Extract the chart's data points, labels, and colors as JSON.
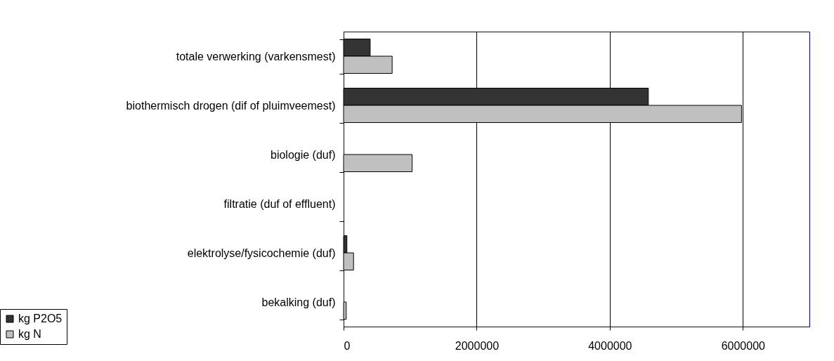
{
  "chart_data": {
    "type": "bar",
    "orientation": "horizontal",
    "categories": [
      "totale verwerking (varkensmest)",
      "biothermisch drogen (dif of pluimveemest)",
      "biologie (duf)",
      "filtratie (duf of effluent)",
      "elektrolyse/fysicochemie (duf)",
      "bekalking (duf)"
    ],
    "series": [
      {
        "name": "kg P2O5",
        "color": "#333333",
        "values": [
          400000,
          4580000,
          null,
          null,
          50000,
          null
        ]
      },
      {
        "name": "kg N",
        "color": "#c0c0c0",
        "values": [
          730000,
          5980000,
          1030000,
          null,
          150000,
          40000
        ]
      }
    ],
    "xlim": [
      0,
      7000000
    ],
    "xticks": [
      0,
      2000000,
      4000000,
      6000000
    ],
    "grid": "x",
    "legend": "bottom left"
  }
}
